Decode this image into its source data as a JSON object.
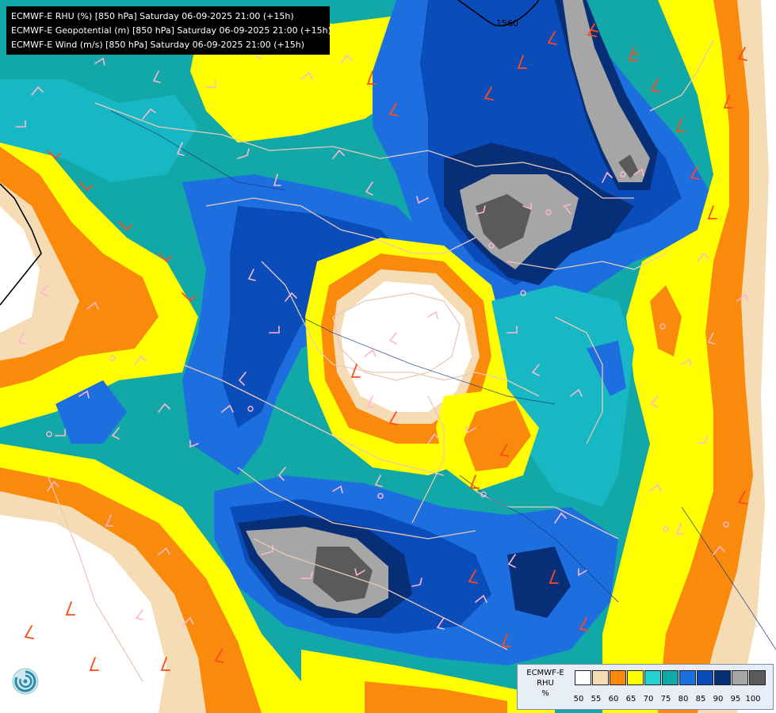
{
  "header": {
    "lines": [
      "ECMWF-E RHU (%) [850 hPa] Saturday 06-09-2025 21:00 (+15h)",
      "ECMWF-E Geopotential (m) [850 hPa] Saturday 06-09-2025 21:00 (+15h)",
      "ECMWF-E Wind (m/s) [850 hPa] Saturday 06-09-2025 21:00 (+15h)"
    ]
  },
  "contour_label": "1560",
  "legend": {
    "line1": "ECMWF-E",
    "line2": "RHU",
    "unit": "%",
    "ticks": [
      "50",
      "55",
      "60",
      "65",
      "70",
      "75",
      "80",
      "85",
      "90",
      "95",
      "100"
    ],
    "colors": [
      "#ffffff",
      "#f6dcb5",
      "#f98a0c",
      "#ffff00",
      "#25d0d0",
      "#12a8a8",
      "#1d6fe0",
      "#0b4cbb",
      "#062f78",
      "#a6a6a6",
      "#5a5a5a"
    ]
  },
  "palette": {
    "ocean_base": "#0f9fb0",
    "border_line": "#e9c9b8",
    "coast_line": "#1a3a8a",
    "wind_barb_pink": "#ffb6d0",
    "wind_barb_orange": "#ff4a1a",
    "contour_black": "#000000"
  },
  "logo_icon": "ecmwf-spiral-logo"
}
